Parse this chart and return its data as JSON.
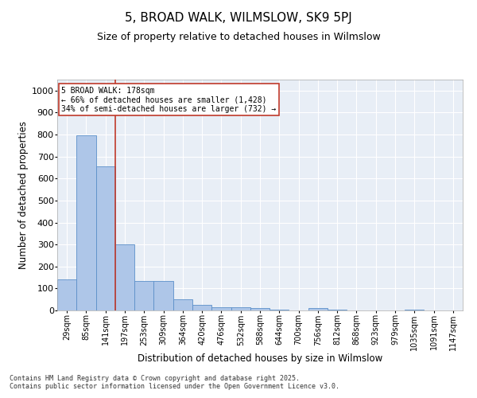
{
  "title": "5, BROAD WALK, WILMSLOW, SK9 5PJ",
  "subtitle": "Size of property relative to detached houses in Wilmslow",
  "xlabel": "Distribution of detached houses by size in Wilmslow",
  "ylabel": "Number of detached properties",
  "categories": [
    "29sqm",
    "85sqm",
    "141sqm",
    "197sqm",
    "253sqm",
    "309sqm",
    "364sqm",
    "420sqm",
    "476sqm",
    "532sqm",
    "588sqm",
    "644sqm",
    "700sqm",
    "756sqm",
    "812sqm",
    "868sqm",
    "923sqm",
    "979sqm",
    "1035sqm",
    "1091sqm",
    "1147sqm"
  ],
  "values": [
    140,
    795,
    655,
    300,
    135,
    135,
    50,
    25,
    15,
    15,
    10,
    5,
    0,
    10,
    5,
    0,
    0,
    0,
    5,
    0,
    0
  ],
  "bar_color": "#aec6e8",
  "bar_edge_color": "#5b8fc9",
  "vline_x": 2.5,
  "vline_color": "#c0392b",
  "annotation_text": "5 BROAD WALK: 178sqm\n← 66% of detached houses are smaller (1,428)\n34% of semi-detached houses are larger (732) →",
  "annotation_box_color": "#ffffff",
  "annotation_box_edge": "#c0392b",
  "ylim": [
    0,
    1050
  ],
  "yticks": [
    0,
    100,
    200,
    300,
    400,
    500,
    600,
    700,
    800,
    900,
    1000
  ],
  "bg_color": "#e8eef6",
  "footer_line1": "Contains HM Land Registry data © Crown copyright and database right 2025.",
  "footer_line2": "Contains public sector information licensed under the Open Government Licence v3.0.",
  "title_fontsize": 11,
  "subtitle_fontsize": 9,
  "tick_fontsize": 7,
  "axis_label_fontsize": 8.5
}
